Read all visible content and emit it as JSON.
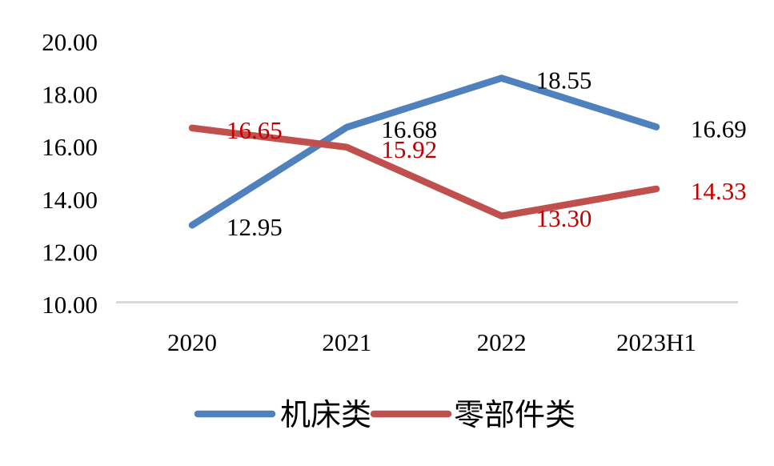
{
  "chart_data": {
    "type": "line",
    "title": "",
    "categories": [
      "2020",
      "2021",
      "2022",
      "2023H1"
    ],
    "series": [
      {
        "name": "机床类",
        "color": "#4F81BD",
        "values": [
          12.95,
          16.68,
          18.55,
          16.69
        ],
        "point_labels": [
          "12.95",
          "16.68",
          "18.55",
          "16.69"
        ],
        "label_color": "#000000"
      },
      {
        "name": "零部件类",
        "color": "#C0504D",
        "values": [
          16.65,
          15.92,
          13.3,
          14.33
        ],
        "point_labels": [
          "16.65",
          "15.92",
          "13.30",
          "14.33"
        ],
        "label_color": "#C00000"
      }
    ],
    "xlabel": "",
    "ylabel": "",
    "ylim": [
      10,
      20
    ],
    "yticks": [
      10,
      12,
      14,
      16,
      18,
      20
    ],
    "ytick_labels": [
      "10.00",
      "12.00",
      "14.00",
      "16.00",
      "18.00",
      "20.00"
    ],
    "grid": false,
    "legend_position": "bottom",
    "background_color": "#FFFFFF",
    "axis_line_color": "#D9D9D9",
    "text_color": "#000000"
  }
}
